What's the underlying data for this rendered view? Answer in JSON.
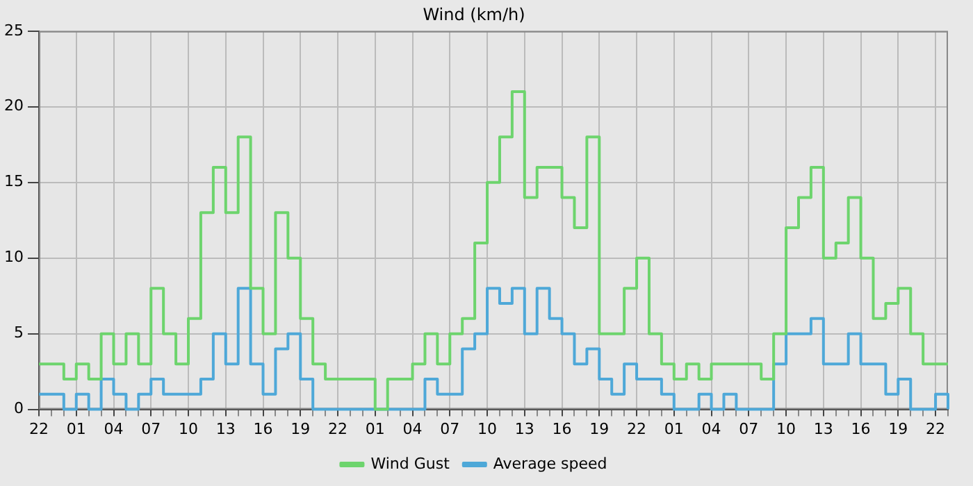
{
  "chart_data": {
    "type": "step",
    "title": "Wind (km/h)",
    "categories": [
      "22",
      null,
      null,
      "01",
      null,
      null,
      "04",
      null,
      null,
      "07",
      null,
      null,
      "10",
      null,
      null,
      "13",
      null,
      null,
      "16",
      null,
      null,
      "19",
      null,
      null,
      "22",
      null,
      null,
      "01",
      null,
      null,
      "04",
      null,
      null,
      "07",
      null,
      null,
      "10",
      null,
      null,
      "13",
      null,
      null,
      "16",
      null,
      null,
      "19",
      null,
      null,
      "22",
      null,
      null,
      "01",
      null,
      null,
      "04",
      null,
      null,
      "07",
      null,
      null,
      "10",
      null,
      null,
      "13",
      null,
      null,
      "16",
      null,
      null,
      "19",
      null,
      null,
      "22",
      null
    ],
    "ylim": [
      0,
      25
    ],
    "yticks": [
      0,
      5,
      10,
      15,
      20,
      25
    ],
    "grid": true,
    "legend": "bottom",
    "marker": "none",
    "series": [
      {
        "name": "Wind Gust",
        "color": "#6dd46d",
        "values": [
          3,
          3,
          2,
          3,
          2,
          5,
          3,
          5,
          3,
          8,
          5,
          3,
          6,
          13,
          16,
          13,
          18,
          8,
          5,
          13,
          10,
          6,
          3,
          2,
          2,
          2,
          2,
          0,
          2,
          2,
          3,
          5,
          3,
          5,
          6,
          11,
          15,
          18,
          21,
          14,
          16,
          16,
          14,
          12,
          18,
          5,
          5,
          8,
          10,
          5,
          3,
          2,
          3,
          2,
          3,
          3,
          3,
          3,
          2,
          5,
          12,
          14,
          16,
          10,
          11,
          14,
          10,
          6,
          7,
          8,
          5,
          3,
          3,
          3
        ]
      },
      {
        "name": "Average speed",
        "color": "#4ea8d8",
        "values": [
          1,
          1,
          0,
          1,
          0,
          2,
          1,
          0,
          1,
          2,
          1,
          1,
          1,
          2,
          5,
          3,
          8,
          3,
          1,
          4,
          5,
          2,
          0,
          0,
          0,
          0,
          0,
          0,
          0,
          0,
          0,
          2,
          1,
          1,
          4,
          5,
          8,
          7,
          8,
          5,
          8,
          6,
          5,
          3,
          4,
          2,
          1,
          3,
          2,
          2,
          1,
          0,
          0,
          1,
          0,
          1,
          0,
          0,
          0,
          3,
          5,
          5,
          6,
          3,
          3,
          5,
          3,
          3,
          1,
          2,
          0,
          0,
          1,
          0
        ]
      }
    ]
  }
}
